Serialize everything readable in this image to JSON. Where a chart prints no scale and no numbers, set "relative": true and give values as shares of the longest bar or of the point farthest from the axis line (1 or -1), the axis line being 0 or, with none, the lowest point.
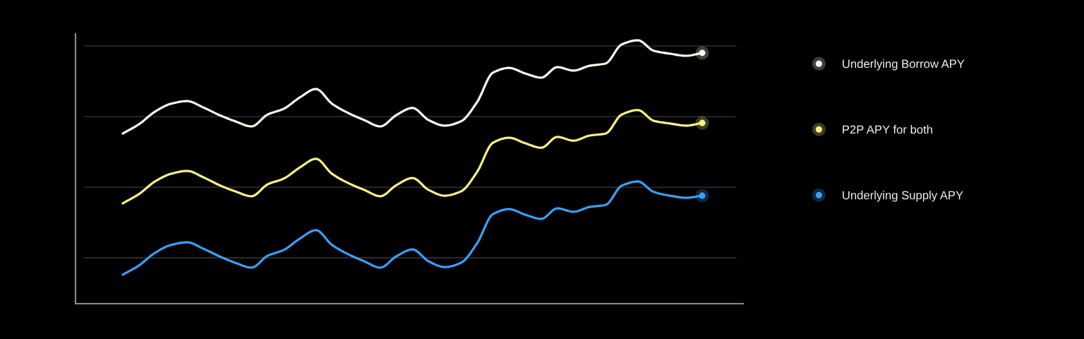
{
  "chart_data": {
    "type": "line",
    "relative": true,
    "grid": "y",
    "legend": "right",
    "categories": [
      null,
      null,
      null,
      null,
      null,
      null,
      null,
      null,
      null,
      null,
      null,
      null,
      null,
      null,
      null,
      null,
      null,
      null,
      null,
      null,
      null,
      null,
      null,
      null,
      null,
      null,
      null,
      null,
      null,
      null,
      null,
      null,
      null,
      null,
      null,
      null,
      null
    ],
    "series": [
      {
        "name": "Underlying Borrow APY",
        "color": "#fdfbe9",
        "values": [
          0.646,
          0.681,
          0.729,
          0.759,
          0.769,
          0.745,
          0.716,
          0.692,
          0.673,
          0.718,
          0.74,
          0.783,
          0.815,
          0.759,
          0.724,
          0.697,
          0.673,
          0.716,
          0.743,
          0.697,
          0.676,
          0.692,
          0.764,
          0.877,
          0.895,
          0.874,
          0.858,
          0.898,
          0.885,
          0.903,
          0.912,
          0.984,
          1.0,
          0.96,
          0.949,
          0.941,
          0.952
        ]
      },
      {
        "name": "P2P APY for both",
        "color": "#faf285",
        "values": [
          0.381,
          0.416,
          0.464,
          0.493,
          0.504,
          0.48,
          0.45,
          0.426,
          0.408,
          0.453,
          0.475,
          0.517,
          0.55,
          0.493,
          0.458,
          0.432,
          0.408,
          0.45,
          0.477,
          0.432,
          0.41,
          0.426,
          0.499,
          0.611,
          0.63,
          0.609,
          0.592,
          0.633,
          0.619,
          0.638,
          0.646,
          0.718,
          0.735,
          0.694,
          0.684,
          0.676,
          0.686
        ]
      },
      {
        "name": "Underlying Supply APY",
        "color": "#38a1f7",
        "values": [
          0.11,
          0.145,
          0.193,
          0.223,
          0.233,
          0.209,
          0.18,
          0.155,
          0.137,
          0.182,
          0.204,
          0.247,
          0.279,
          0.223,
          0.188,
          0.161,
          0.137,
          0.18,
          0.206,
          0.161,
          0.139,
          0.155,
          0.228,
          0.34,
          0.359,
          0.338,
          0.322,
          0.362,
          0.349,
          0.367,
          0.375,
          0.448,
          0.464,
          0.424,
          0.41,
          0.402,
          0.41
        ]
      }
    ]
  }
}
